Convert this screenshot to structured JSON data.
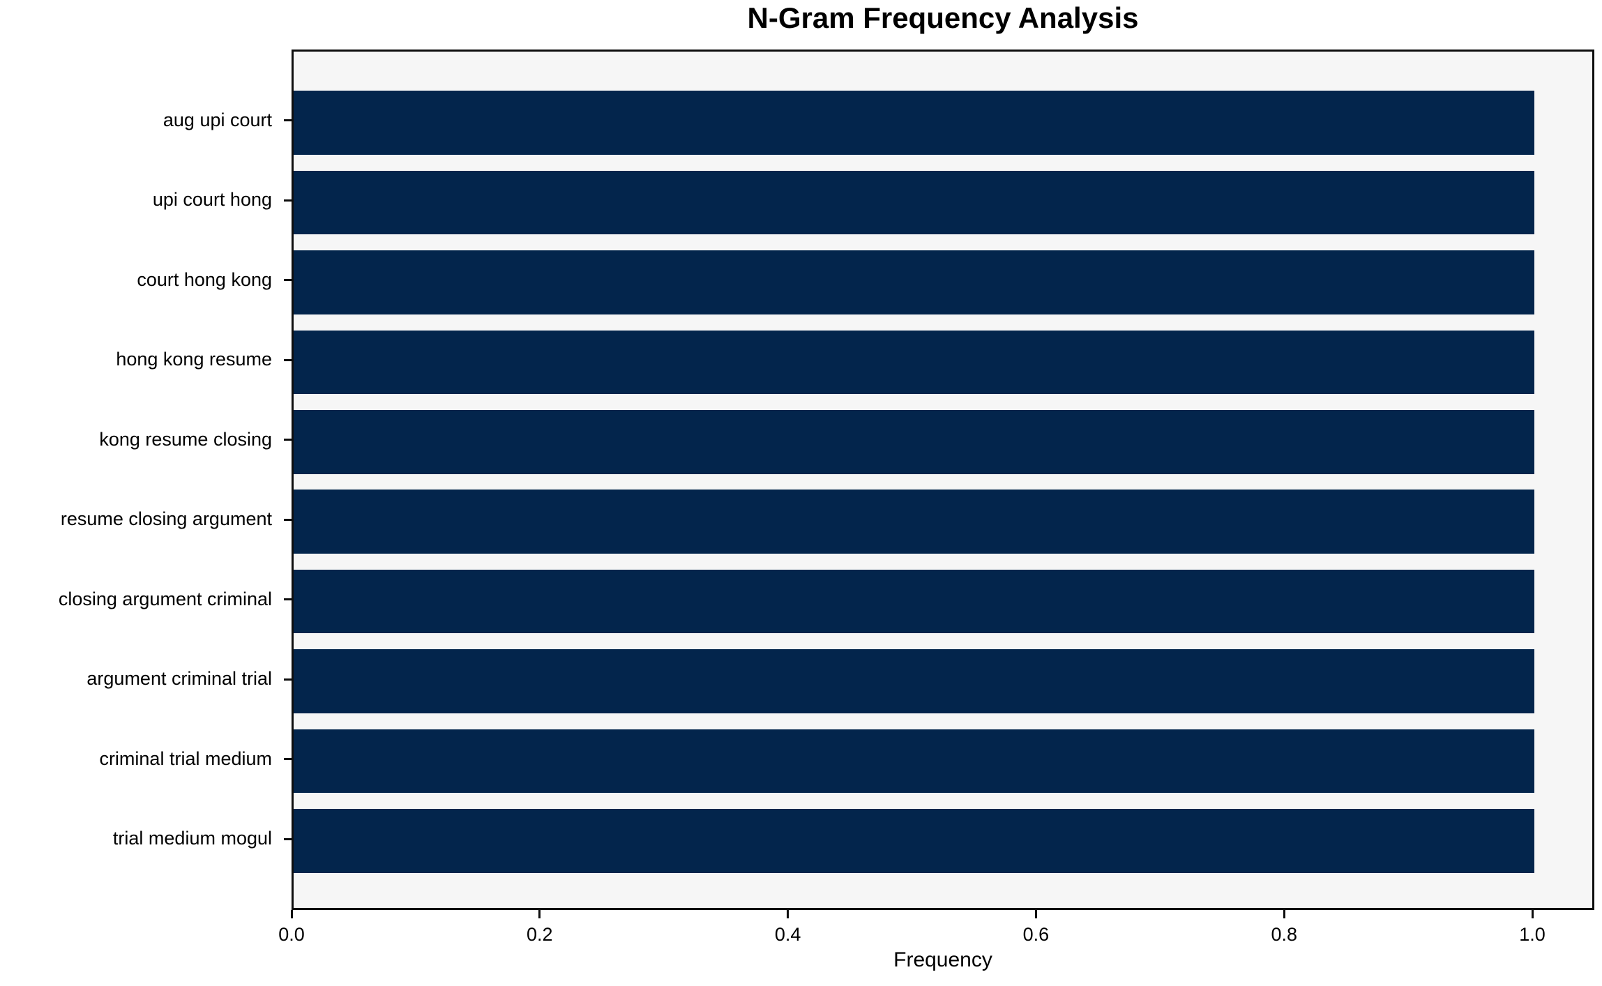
{
  "chart_data": {
    "type": "bar",
    "orientation": "horizontal",
    "title": "N-Gram Frequency Analysis",
    "xlabel": "Frequency",
    "ylabel": "",
    "categories": [
      "aug upi court",
      "upi court hong",
      "court hong kong",
      "hong kong resume",
      "kong resume closing",
      "resume closing argument",
      "closing argument criminal",
      "argument criminal trial",
      "criminal trial medium",
      "trial medium mogul"
    ],
    "values": [
      1.0,
      1.0,
      1.0,
      1.0,
      1.0,
      1.0,
      1.0,
      1.0,
      1.0,
      1.0
    ],
    "xlim": [
      0,
      1.05
    ],
    "xticks": [
      0.0,
      0.2,
      0.4,
      0.6,
      0.8,
      1.0
    ],
    "xtick_labels": [
      "0.0",
      "0.2",
      "0.4",
      "0.6",
      "0.8",
      "1.0"
    ],
    "bar_color": "#03254c",
    "plot_bg": "#f6f6f6",
    "figure_bg": "#ffffff",
    "grid": false,
    "legend": null
  }
}
